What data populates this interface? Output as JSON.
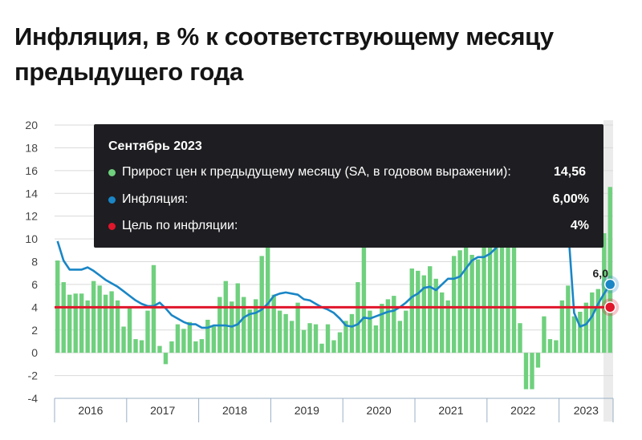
{
  "title": "Инфляция, в % к соответствующему месяцу предыдущего года",
  "colors": {
    "bars": "#6fd07e",
    "inflation_line": "#1a86c6",
    "target_line": "#e0162b",
    "tooltip_bg": "#1e1e22",
    "grid": "#d9d9d9",
    "hover_band": "#ebebeb"
  },
  "tooltip": {
    "header": "Сентябрь 2023",
    "rows": [
      {
        "label": "Прирост цен к предыдущему месяцу (SA, в годовом выражении):",
        "value": "14,56",
        "color": "#6fd07e"
      },
      {
        "label": "Инфляция:",
        "value": "6,00%",
        "color": "#1a86c6"
      },
      {
        "label": "Цель по инфляции:",
        "value": "4%",
        "color": "#e0162b"
      }
    ]
  },
  "point_label": "6,0",
  "chart_data": {
    "type": "bar",
    "x_start": "2016-01",
    "x_end": "2023-09",
    "x_tick_labels": [
      "2016",
      "2017",
      "2018",
      "2019",
      "2020",
      "2021",
      "2022",
      "2023"
    ],
    "y_tick_labels": [
      "20",
      "18",
      "16",
      "14",
      "12",
      "10",
      "8",
      "6",
      "4",
      "2",
      "0",
      "-2",
      "-4"
    ],
    "ylim": [
      -4,
      20
    ],
    "series": [
      {
        "name": "Прирост цен к предыдущему месяцу (SA, в годовом выражении)",
        "type": "bar",
        "values": [
          8.1,
          6.2,
          5.1,
          5.2,
          5.2,
          4.6,
          6.3,
          5.9,
          5.1,
          5.4,
          4.6,
          2.3,
          4.0,
          1.2,
          1.1,
          3.7,
          7.7,
          0.6,
          -1.0,
          1.0,
          2.5,
          2.1,
          2.7,
          1.0,
          1.2,
          2.9,
          2.3,
          4.9,
          6.3,
          4.5,
          6.1,
          4.9,
          3.8,
          4.7,
          8.5,
          10.8,
          5.1,
          3.7,
          3.4,
          2.8,
          4.4,
          2.0,
          2.6,
          2.5,
          0.8,
          2.5,
          1.1,
          1.8,
          2.8,
          3.4,
          6.2,
          10.9,
          3.7,
          2.4,
          4.3,
          4.7,
          5.0,
          2.8,
          3.7,
          7.4,
          7.2,
          6.8,
          7.6,
          6.5,
          5.3,
          4.6,
          8.5,
          9.0,
          10.2,
          8.6,
          8.2,
          9.6,
          9.3,
          11.2,
          10.5,
          11.8,
          9.4,
          2.6,
          -3.2,
          -3.2,
          -1.3,
          3.2,
          1.2,
          1.1,
          4.6,
          5.9,
          3.2,
          3.6,
          4.4,
          5.3,
          5.6,
          10.5,
          14.56
        ]
      },
      {
        "name": "Инфляция",
        "type": "line",
        "values": [
          9.8,
          8.1,
          7.3,
          7.3,
          7.3,
          7.5,
          7.2,
          6.8,
          6.4,
          6.1,
          5.8,
          5.4,
          5.0,
          4.6,
          4.3,
          4.1,
          4.1,
          4.4,
          3.9,
          3.3,
          3.0,
          2.7,
          2.5,
          2.5,
          2.2,
          2.2,
          2.4,
          2.4,
          2.4,
          2.3,
          2.5,
          3.1,
          3.4,
          3.5,
          3.8,
          4.3,
          5.0,
          5.2,
          5.3,
          5.2,
          5.1,
          4.7,
          4.6,
          4.3,
          4.0,
          3.8,
          3.5,
          3.0,
          2.4,
          2.3,
          2.5,
          3.1,
          3.0,
          3.2,
          3.4,
          3.6,
          3.7,
          4.0,
          4.4,
          4.9,
          5.2,
          5.7,
          5.8,
          5.5,
          6.0,
          6.5,
          6.5,
          6.7,
          7.4,
          8.1,
          8.4,
          8.4,
          8.7,
          9.2,
          16.7,
          17.8,
          17.1,
          15.9,
          15.1,
          14.3,
          13.7,
          12.6,
          12.0,
          11.9,
          11.8,
          11.0,
          3.5,
          2.3,
          2.5,
          3.2,
          4.3,
          5.2,
          6.0
        ]
      },
      {
        "name": "Цель по инфляции",
        "type": "line",
        "value": 4
      }
    ]
  }
}
